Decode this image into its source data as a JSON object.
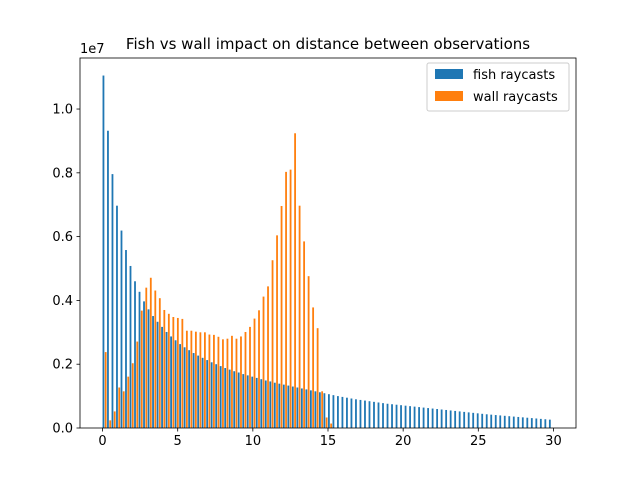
{
  "chart_data": {
    "type": "bar",
    "title": "Fish vs wall impact on distance between observations",
    "xlabel": "",
    "ylabel": "",
    "y_offset_text": "1e7",
    "xlim": [
      -1.5,
      31.5
    ],
    "ylim": [
      0,
      11600000
    ],
    "x_ticks": [
      0,
      5,
      10,
      15,
      20,
      25,
      30
    ],
    "x_tick_labels": [
      "0",
      "5",
      "10",
      "15",
      "20",
      "25",
      "30"
    ],
    "y_ticks": [
      0,
      2000000,
      4000000,
      6000000,
      8000000,
      10000000
    ],
    "y_tick_labels": [
      "0.0",
      "0.2",
      "0.4",
      "0.6",
      "0.8",
      "1.0"
    ],
    "bin_width": 0.3,
    "grid": false,
    "legend_position": "upper-right",
    "series": [
      {
        "name": "fish raycasts",
        "color": "#1f77b4",
        "x": [
          0.0,
          0.3,
          0.6,
          0.9,
          1.2,
          1.5,
          1.8,
          2.1,
          2.4,
          2.7,
          3.0,
          3.3,
          3.6,
          3.9,
          4.2,
          4.5,
          4.8,
          5.1,
          5.4,
          5.7,
          6.0,
          6.3,
          6.6,
          6.9,
          7.2,
          7.5,
          7.8,
          8.1,
          8.4,
          8.7,
          9.0,
          9.3,
          9.6,
          9.9,
          10.2,
          10.5,
          10.8,
          11.1,
          11.4,
          11.7,
          12.0,
          12.3,
          12.6,
          12.9,
          13.2,
          13.5,
          13.8,
          14.1,
          14.4,
          14.7,
          15.0,
          15.3,
          15.6,
          15.9,
          16.2,
          16.5,
          16.8,
          17.1,
          17.4,
          17.7,
          18.0,
          18.3,
          18.6,
          18.9,
          19.2,
          19.5,
          19.8,
          20.1,
          20.4,
          20.7,
          21.0,
          21.3,
          21.6,
          21.9,
          22.2,
          22.5,
          22.8,
          23.1,
          23.4,
          23.7,
          24.0,
          24.3,
          24.6,
          24.9,
          25.2,
          25.5,
          25.8,
          26.1,
          26.4,
          26.7,
          27.0,
          27.3,
          27.6,
          27.9,
          28.2,
          28.5,
          28.8,
          29.1,
          29.4,
          29.7
        ],
        "values": [
          11050000,
          9320000,
          7960000,
          6970000,
          6190000,
          5580000,
          5080000,
          4600000,
          4270000,
          3970000,
          3720000,
          3510000,
          3330000,
          3170000,
          3010000,
          2870000,
          2750000,
          2630000,
          2530000,
          2440000,
          2350000,
          2270000,
          2200000,
          2130000,
          2060000,
          2000000,
          1940000,
          1880000,
          1830000,
          1780000,
          1740000,
          1690000,
          1650000,
          1610000,
          1570000,
          1530000,
          1490000,
          1460000,
          1420000,
          1390000,
          1360000,
          1330000,
          1300000,
          1270000,
          1240000,
          1210000,
          1180000,
          1150000,
          1120000,
          1090000,
          1060000,
          1030000,
          1000000,
          975000,
          950000,
          925000,
          900000,
          880000,
          860000,
          840000,
          820000,
          800000,
          780000,
          760000,
          745000,
          730000,
          715000,
          700000,
          685000,
          670000,
          655000,
          640000,
          625000,
          610000,
          595000,
          580000,
          565000,
          550000,
          535000,
          520000,
          505000,
          490000,
          475000,
          460000,
          445000,
          430000,
          418000,
          406000,
          394000,
          382000,
          370000,
          358000,
          346000,
          334000,
          322000,
          310000,
          298000,
          286000,
          274000,
          262000
        ]
      },
      {
        "name": "wall raycasts",
        "color": "#ff7f0e",
        "x": [
          0.0,
          0.3,
          0.6,
          0.9,
          1.2,
          1.5,
          1.8,
          2.1,
          2.4,
          2.7,
          3.0,
          3.3,
          3.6,
          3.9,
          4.2,
          4.5,
          4.8,
          5.1,
          5.4,
          5.7,
          6.0,
          6.3,
          6.6,
          6.9,
          7.2,
          7.5,
          7.8,
          8.1,
          8.4,
          8.7,
          9.0,
          9.3,
          9.6,
          9.9,
          10.2,
          10.5,
          10.8,
          11.1,
          11.4,
          11.7,
          12.0,
          12.3,
          12.6,
          12.9,
          13.2,
          13.5,
          13.8,
          14.1,
          14.4,
          14.7,
          15.0
        ],
        "values": [
          2380000,
          240000,
          520000,
          1270000,
          1150000,
          1610000,
          2030000,
          2710000,
          3680000,
          4400000,
          4710000,
          4310000,
          4070000,
          3700000,
          3580000,
          3480000,
          3450000,
          3420000,
          3050000,
          3050000,
          3020000,
          3000000,
          3000000,
          2930000,
          2920000,
          2860000,
          2780000,
          2800000,
          2890000,
          2800000,
          2870000,
          3010000,
          3170000,
          3430000,
          3690000,
          4120000,
          4440000,
          5260000,
          6040000,
          6960000,
          8030000,
          8100000,
          9240000,
          6970000,
          5850000,
          4760000,
          3780000,
          3130000,
          1150000,
          330000,
          140000
        ]
      }
    ]
  }
}
